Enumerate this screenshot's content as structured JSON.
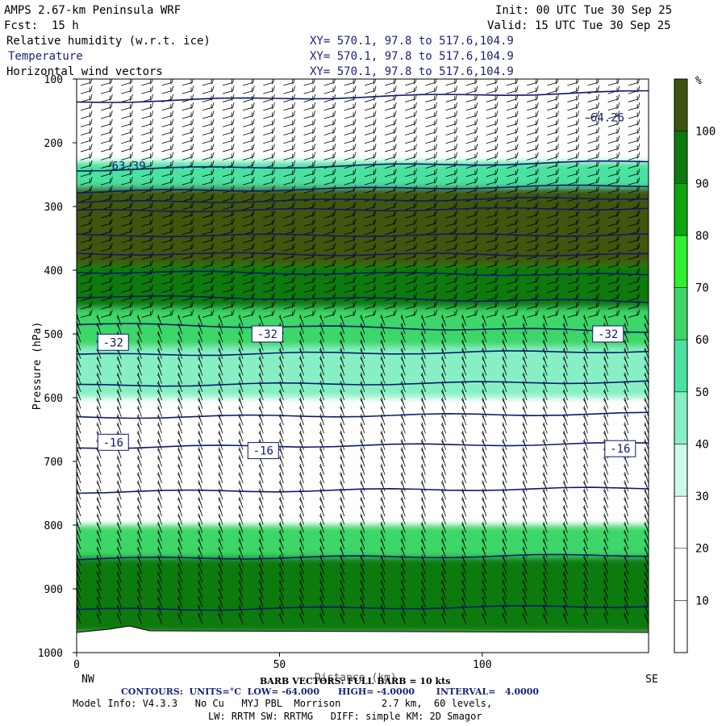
{
  "header": {
    "title": "AMPS 2.67-km Peninsula WRF",
    "init": "Init: 00 UTC Tue 30 Sep 25",
    "fcst": "Fcst:  15 h",
    "valid": "Valid: 15 UTC Tue 30 Sep 25",
    "field1": "Relative humidity (w.r.t. ice)",
    "field2": "Temperature",
    "field3": "Horizontal wind vectors",
    "xy1": "XY= 570.1, 97.8 to 517.6,104.9",
    "xy2": "XY= 570.1, 97.8 to 517.6,104.9",
    "xy3": "XY= 570.1, 97.8 to 517.6,104.9"
  },
  "footer": {
    "barb": "BARB VECTORS: FULL BARB = 10 kts",
    "xlabel": "Distance (km)",
    "contours": "CONTOURS:  UNITS=°C  LOW= -64.000      HIGH= -4.0000       INTERVAL=   4.0000",
    "model": "Model Info: V4.3.3   No Cu   MYJ PBL  Morrison       2.7 km,  60 levels,",
    "model2": "LW: RRTM SW: RRTMG   DIFF: simple KM: 2D Smagor"
  },
  "chart_data": {
    "type": "cross-section",
    "xlabel": "Distance (km)",
    "ylabel": "Pressure (hPa)",
    "x_ticks": [
      0,
      50,
      100
    ],
    "x_end_labels": [
      "NW",
      "SE"
    ],
    "xlim": [
      0,
      141
    ],
    "y_ticks": [
      100,
      200,
      300,
      400,
      500,
      600,
      700,
      800,
      900,
      1000
    ],
    "ylim": [
      1000,
      100
    ],
    "colorbar": {
      "unit": "%",
      "ticks": [
        10,
        20,
        30,
        40,
        50,
        60,
        70,
        80,
        90,
        100
      ],
      "colors": [
        "#ffffff",
        "#ffffff",
        "#ffffff",
        "#ccfae8",
        "#86f0c4",
        "#49e2a0",
        "#3dd668",
        "#2ef02e",
        "#0ea50e",
        "#0d7a10",
        "#3f5410"
      ]
    },
    "temperature_contours": {
      "units": "°C",
      "low": -64.0,
      "high": -4.0,
      "interval": 4.0,
      "levels": [
        -64,
        -60,
        -56,
        -52,
        -48,
        -44,
        -40,
        -36,
        -32,
        -28,
        -24,
        -20,
        -16,
        -12,
        -8,
        -4
      ],
      "labels": [
        {
          "value": "-64.26",
          "x": 130,
          "p": 160
        },
        {
          "value": "-63.39",
          "x": 12,
          "p": 236
        },
        {
          "value": "-32",
          "x": 9,
          "p": 513
        },
        {
          "value": "-32",
          "x": 47,
          "p": 500
        },
        {
          "value": "-32",
          "x": 131,
          "p": 500
        },
        {
          "value": "-16",
          "x": 9,
          "p": 670
        },
        {
          "value": "-16",
          "x": 46,
          "p": 683
        },
        {
          "value": "-16",
          "x": 134,
          "p": 680
        }
      ]
    },
    "rh_bands": [
      {
        "p_top": 230,
        "p_bottom": 270,
        "rh": 55
      },
      {
        "p_top": 270,
        "p_bottom": 390,
        "rh": 100
      },
      {
        "p_top": 390,
        "p_bottom": 460,
        "rh": 90
      },
      {
        "p_top": 460,
        "p_bottom": 520,
        "rh": 65
      },
      {
        "p_top": 520,
        "p_bottom": 600,
        "rh": 45
      },
      {
        "p_top": 800,
        "p_bottom": 850,
        "rh": 60
      },
      {
        "p_top": 850,
        "p_bottom": 970,
        "rh": 95
      }
    ],
    "wind_barbs": {
      "spacing_km": 5,
      "full_barb_kts": 10
    }
  }
}
